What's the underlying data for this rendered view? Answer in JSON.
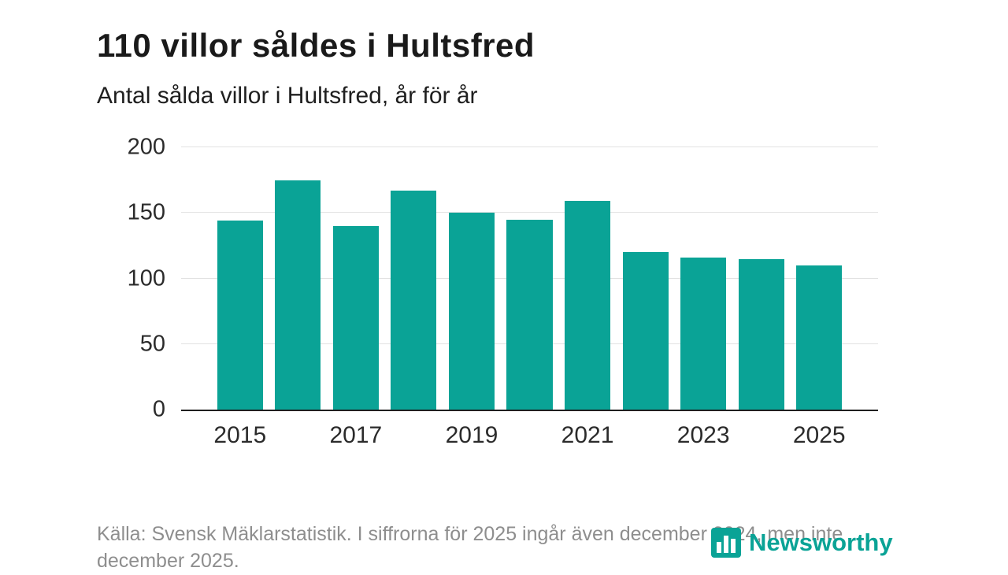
{
  "chart_data": {
    "type": "bar",
    "title": "110 villor såldes i Hultsfred",
    "subtitle": "Antal sålda villor i Hultsfred, år för år",
    "categories": [
      2015,
      2016,
      2017,
      2018,
      2019,
      2020,
      2021,
      2022,
      2023,
      2024,
      2025
    ],
    "values": [
      144,
      175,
      140,
      167,
      150,
      145,
      159,
      120,
      116,
      115,
      110
    ],
    "xlabel": "",
    "ylabel": "",
    "ylim": [
      0,
      200
    ],
    "yticks": [
      0,
      50,
      100,
      150,
      200
    ],
    "xticks": [
      2015,
      2017,
      2019,
      2021,
      2023,
      2025
    ],
    "bar_color": "#0aa396",
    "grid": true,
    "legend": false
  },
  "footer": {
    "source": "Källa: Svensk Mäklarstatistik. I siffrorna för 2025 ingår även december 2024, men inte december 2025.",
    "brand": "Newsworthy",
    "brand_color": "#0aa396"
  }
}
